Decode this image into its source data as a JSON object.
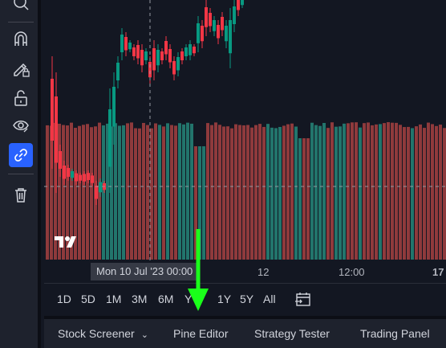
{
  "toolbar": {
    "items": [
      {
        "icon": "zoom-icon"
      },
      {
        "icon": "magnet-icon"
      },
      {
        "icon": "pencil-lock-icon"
      },
      {
        "icon": "lock-icon"
      },
      {
        "icon": "eye-icon"
      },
      {
        "icon": "link-icon",
        "active": true
      },
      {
        "icon": "trash-icon"
      }
    ]
  },
  "chart": {
    "up_color": "#089981",
    "down_color": "#f23645",
    "volume_up_color": "#22756c",
    "volume_down_color": "#8f3a3c",
    "crosshair_color": "#9598a1"
  },
  "time_axis": {
    "crosshair_label": "Mon 10 Jul '23   00:00",
    "labels": [
      "12",
      "12:00",
      "17"
    ]
  },
  "range_bar": {
    "buttons": [
      "1D",
      "5D",
      "1M",
      "3M",
      "6M",
      "Y",
      "1Y",
      "5Y",
      "All"
    ]
  },
  "bottom_panel": {
    "tabs": [
      {
        "label": "Stock Screener",
        "dropdown": true
      },
      {
        "label": "Pine Editor"
      },
      {
        "label": "Strategy Tester"
      },
      {
        "label": "Trading Panel"
      }
    ]
  },
  "annotation": {
    "arrow_color": "#1aff1a"
  }
}
